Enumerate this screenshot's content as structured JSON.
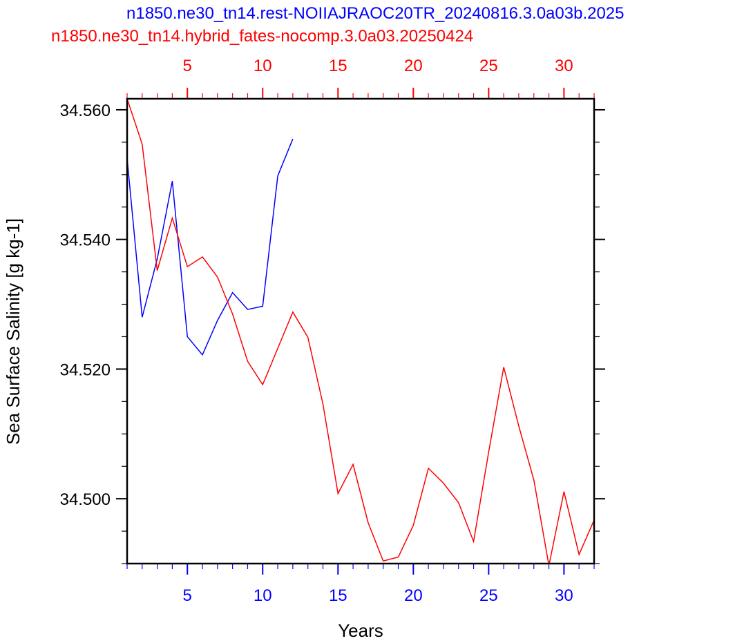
{
  "titles": {
    "blue": "n1850.ne30_tn14.rest-NOIIAJRAOC20TR_20240816.3.0a03b.2025",
    "red": "n1850.ne30_tn14.hybrid_fates-nocomp.3.0a03.20250424"
  },
  "colors": {
    "blue": "#0000ff",
    "red": "#ff0000",
    "frame": "#000000"
  },
  "chart_data": {
    "type": "line",
    "xlabel": "Years",
    "ylabel": "Sea Surface Salinity [g kg-1]",
    "xlim": [
      1,
      32
    ],
    "ylim": [
      34.49,
      34.5617
    ],
    "y_major_ticks": [
      34.5,
      34.52,
      34.54,
      34.56
    ],
    "y_tick_labels": [
      "34.500",
      "34.520",
      "34.540",
      "34.560"
    ],
    "y_minor_step": 0.005,
    "bottom_axis": {
      "color": "blue",
      "ticks": [
        5,
        10,
        15,
        20,
        25,
        30
      ],
      "tick_labels": [
        "5",
        "10",
        "15",
        "20",
        "25",
        "30"
      ]
    },
    "top_axis": {
      "color": "red",
      "ticks": [
        5,
        10,
        15,
        20,
        25,
        30
      ],
      "tick_labels": [
        "5",
        "10",
        "15",
        "20",
        "25",
        "30"
      ]
    },
    "minor_x_step": 1,
    "grid": false,
    "series": [
      {
        "color": "blue",
        "x": [
          1,
          2,
          3,
          4,
          5,
          6,
          7,
          8,
          9,
          10,
          11,
          12
        ],
        "y": [
          34.5525,
          34.528,
          34.537,
          34.549,
          34.525,
          34.5222,
          34.5275,
          34.5318,
          34.5292,
          34.5297,
          34.5498,
          34.5555
        ]
      },
      {
        "color": "red",
        "x": [
          1,
          2,
          3,
          4,
          5,
          6,
          7,
          8,
          9,
          10,
          11,
          12,
          13,
          14,
          15,
          16,
          17,
          18,
          19,
          20,
          21,
          22,
          23,
          24,
          25,
          26,
          27,
          28,
          29,
          30,
          31,
          32
        ],
        "y": [
          34.5617,
          34.5547,
          34.5352,
          34.5433,
          34.5358,
          34.5373,
          34.5342,
          34.5285,
          34.5212,
          34.5176,
          34.5232,
          34.5288,
          34.5249,
          34.5146,
          34.5008,
          34.5053,
          34.4963,
          34.4904,
          34.491,
          34.4959,
          34.5047,
          34.5024,
          34.4994,
          34.4934,
          34.5072,
          34.5203,
          34.5112,
          34.5029,
          34.4897,
          34.5011,
          34.4914,
          34.4967
        ]
      }
    ]
  }
}
